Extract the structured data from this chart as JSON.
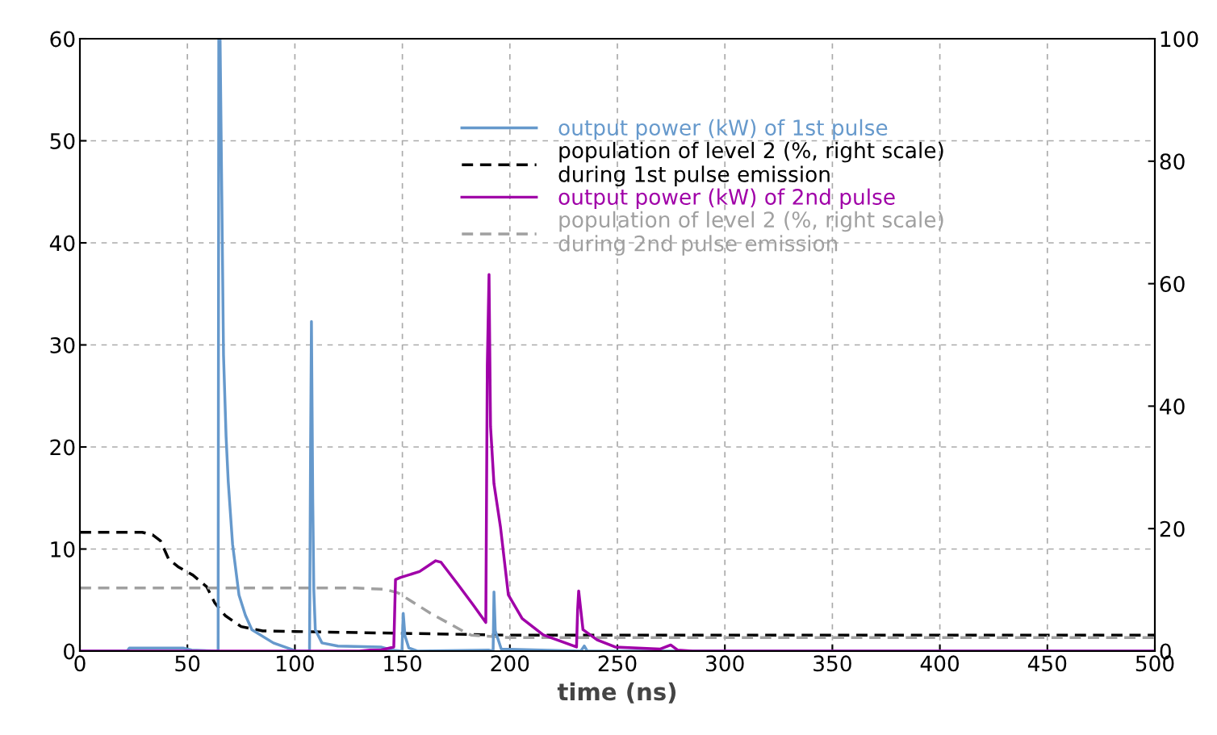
{
  "chart_data": {
    "type": "line",
    "xlabel": "time (ns)",
    "xlim": [
      0,
      500
    ],
    "xticks": [
      0,
      50,
      100,
      150,
      200,
      250,
      300,
      350,
      400,
      450,
      500
    ],
    "ylim": [
      0,
      60
    ],
    "yticks": [
      0,
      10,
      20,
      30,
      40,
      50,
      60
    ],
    "y2lim": [
      0,
      100
    ],
    "y2ticks": [
      0,
      20,
      40,
      60,
      80,
      100
    ],
    "grid": true,
    "legend": "top",
    "marker": "none",
    "series": [
      {
        "name": "output power (kW) of 1st pulse",
        "color": "#6699cc",
        "line_style": "solid",
        "x": [
          0,
          22,
          23,
          48,
          52,
          64.3,
          64.6,
          65.2,
          66,
          66.8,
          68,
          69,
          71,
          74,
          77,
          80,
          90,
          98.7,
          100,
          106.8,
          107.3,
          107.7,
          108.3,
          108.8,
          109.5,
          112.6,
          120,
          140,
          145,
          149.8,
          150.4,
          151.2,
          153,
          157,
          190,
          192.2,
          192.6,
          193.2,
          196,
          233,
          234.6,
          236,
          240,
          500
        ],
        "values": [
          0,
          0,
          0.3,
          0.3,
          0.1,
          0,
          60,
          60,
          44.7,
          29,
          21,
          16.6,
          10.5,
          5.5,
          3.5,
          2.1,
          0.8,
          0.15,
          0,
          0,
          20,
          32.3,
          15,
          6,
          2.1,
          0.8,
          0.5,
          0.4,
          0.1,
          0,
          3.7,
          1.5,
          0.3,
          0,
          0.1,
          0,
          5.8,
          2,
          0.2,
          0,
          0.5,
          0,
          0,
          0
        ]
      },
      {
        "name": "population of level 2 (%, right scale)\nduring 1st pulse emission",
        "color": "#000000",
        "line_style": "dashed",
        "axis": "y2",
        "x": [
          0,
          29,
          33.8,
          37.5,
          41.3,
          46,
          52.6,
          59,
          62.7,
          67.6,
          75,
          85,
          100,
          150,
          200,
          500
        ],
        "values": [
          19.4,
          19.4,
          19,
          18,
          15,
          13.7,
          12.4,
          10.5,
          7.9,
          5.8,
          4,
          3.3,
          3.2,
          2.9,
          2.6,
          2.6
        ]
      },
      {
        "name": "output power (kW) of 2nd pulse",
        "color": "#a000a8",
        "line_style": "solid",
        "x": [
          0,
          130,
          135,
          140,
          146,
          146.8,
          149,
          158,
          165.5,
          168,
          175.6,
          183,
          188.8,
          189.5,
          190.3,
          191,
          192.6,
          195.6,
          199.3,
          205.7,
          215.5,
          231,
          231.5,
          232,
          234,
          240.6,
          249,
          270,
          274.8,
          278,
          285,
          500
        ],
        "values": [
          0,
          0,
          0.1,
          0.1,
          0.4,
          7,
          7.2,
          7.8,
          8.85,
          8.7,
          6.6,
          4.5,
          2.8,
          28,
          36.9,
          22,
          16.4,
          12.2,
          5.5,
          3.2,
          1.6,
          0.4,
          4,
          5.9,
          2.1,
          1.1,
          0.4,
          0.2,
          0.6,
          0.1,
          0,
          0
        ]
      },
      {
        "name": "population of level 2 (%, right scale)\nduring 2nd pulse emission",
        "color": "#a0a0a0",
        "line_style": "dashed",
        "axis": "y2",
        "x": [
          0,
          128,
          142,
          148,
          163,
          178,
          182,
          200,
          500
        ],
        "values": [
          10.3,
          10.3,
          10.1,
          9.5,
          6.2,
          3.3,
          2.6,
          2.2,
          2.2
        ]
      }
    ]
  }
}
